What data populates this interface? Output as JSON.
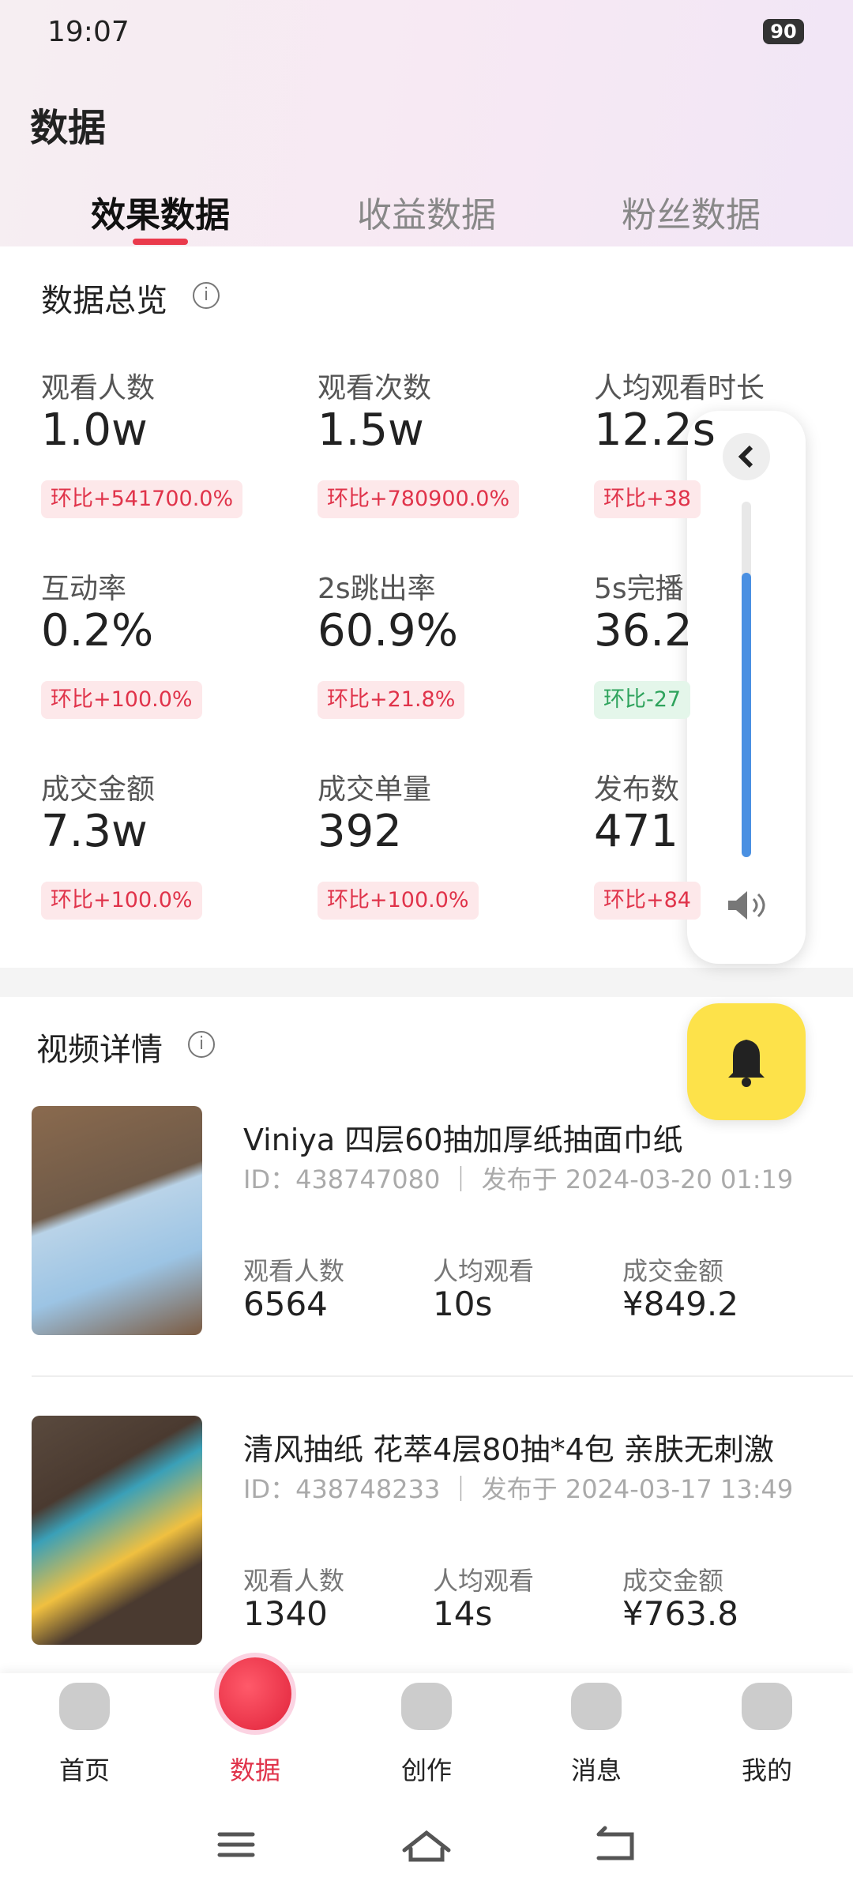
{
  "status_bar": {
    "time": "19:07",
    "battery": "90"
  },
  "header": {
    "title": "数据"
  },
  "tabs": [
    "效果数据",
    "收益数据",
    "粉丝数据"
  ],
  "overview": {
    "title": "数据总览",
    "metrics": [
      {
        "label": "观看人数",
        "value": "1.0w",
        "change": "环比+541700.0%"
      },
      {
        "label": "观看次数",
        "value": "1.5w",
        "change": "环比+780900.0%"
      },
      {
        "label": "人均观看时长",
        "value": "12.2s",
        "change": "环比+38"
      },
      {
        "label": "互动率",
        "value": "0.2%",
        "change": "环比+100.0%"
      },
      {
        "label": "2s跳出率",
        "value": "60.9%",
        "change": "环比+21.8%"
      },
      {
        "label": "5s完播",
        "value": "36.2",
        "change": "环比-27"
      },
      {
        "label": "成交金额",
        "value": "7.3w",
        "change": "环比+100.0%"
      },
      {
        "label": "成交单量",
        "value": "392",
        "change": "环比+100.0%"
      },
      {
        "label": "发布数",
        "value": "471",
        "change": "环比+84"
      }
    ]
  },
  "video_section": {
    "title": "视频详情",
    "videos": [
      {
        "title": "Viniya 四层60抽加厚纸抽面巾纸",
        "id_line": "ID：438747080 ｜ 发布于 2024-03-20 01:19",
        "stats": [
          {
            "label": "观看人数",
            "value": "6564"
          },
          {
            "label": "人均观看",
            "value": "10s"
          },
          {
            "label": "成交金额",
            "value": "¥849.2"
          }
        ]
      },
      {
        "title": "清风抽纸 花萃4层80抽*4包 亲肤无刺激",
        "id_line": "ID：438748233 ｜ 发布于 2024-03-17 13:49",
        "stats": [
          {
            "label": "观看人数",
            "value": "1340"
          },
          {
            "label": "人均观看",
            "value": "14s"
          },
          {
            "label": "成交金额",
            "value": "¥763.8"
          }
        ]
      }
    ]
  },
  "nav": [
    "首页",
    "数据",
    "创作",
    "消息",
    "我的"
  ]
}
